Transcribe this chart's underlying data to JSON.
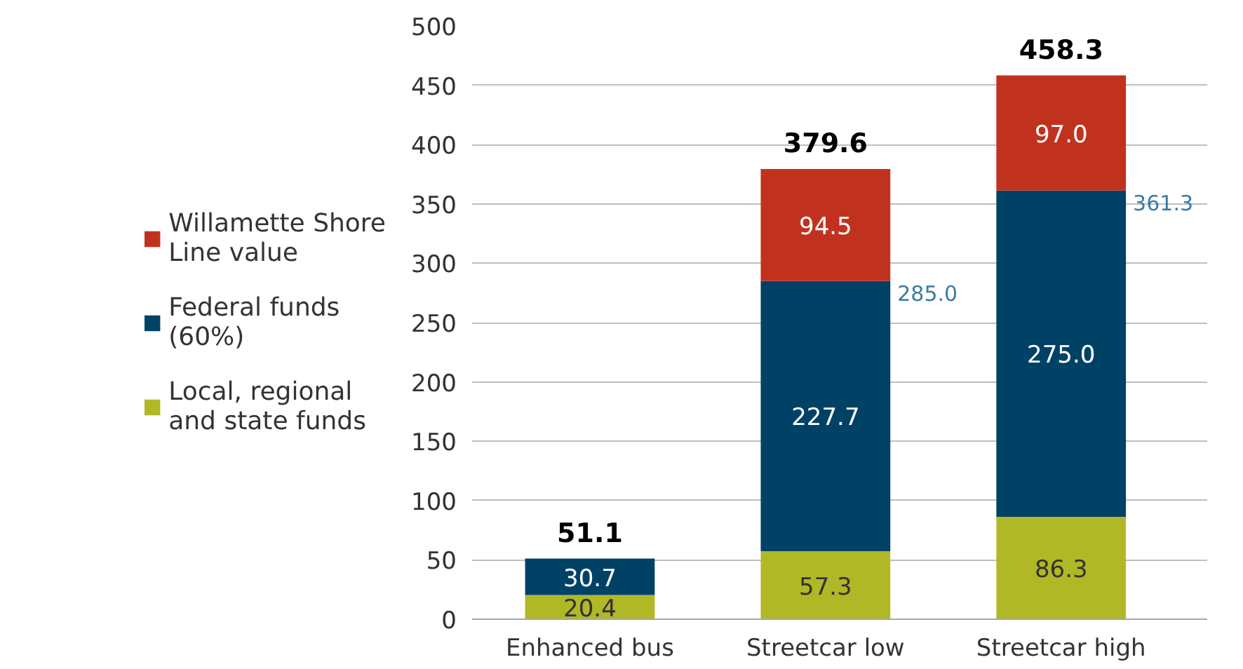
{
  "chart_data": {
    "type": "bar",
    "stacked": true,
    "categories": [
      "Enhanced bus",
      "Streetcar low",
      "Streetcar high"
    ],
    "series": [
      {
        "name": "Local, regional and state funds",
        "color": "#b1b826",
        "values": [
          20.4,
          57.3,
          86.3
        ],
        "value_labels": [
          "20.4",
          "57.3",
          "86.3"
        ]
      },
      {
        "name": "Federal funds (60%)",
        "color": "#004266",
        "values": [
          30.7,
          227.7,
          275.0
        ],
        "value_labels": [
          "30.7",
          "227.7",
          "275.0"
        ]
      },
      {
        "name": "Willamette Shore Line value",
        "color": "#c1321e",
        "values": [
          null,
          94.5,
          97.0
        ],
        "value_labels": [
          null,
          "94.5",
          "97.0"
        ]
      }
    ],
    "totals": [
      "51.1",
      "379.6",
      "458.3"
    ],
    "annotations": [
      "285.0",
      "361.3"
    ],
    "ylim": [
      0,
      500
    ],
    "yticks": [
      0,
      50,
      100,
      150,
      200,
      250,
      300,
      350,
      400,
      450,
      500
    ],
    "grid": "y",
    "legend": "left"
  }
}
